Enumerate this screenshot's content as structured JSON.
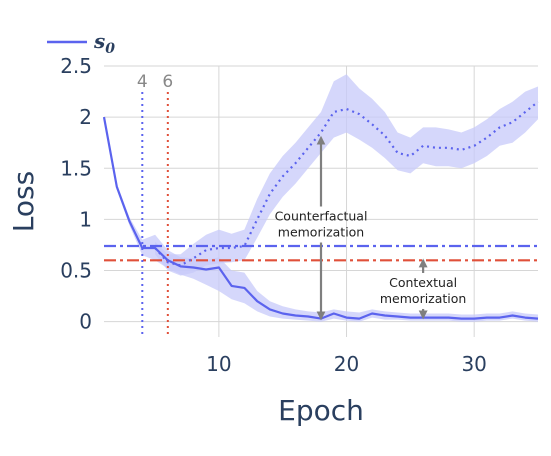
{
  "chart_data": {
    "type": "line",
    "xlabel": "Epoch",
    "ylabel": "Loss",
    "xlim": [
      1,
      35
    ],
    "ylim": [
      -0.15,
      2.5
    ],
    "xticks": [
      10,
      20,
      30
    ],
    "yticks": [
      0,
      0.5,
      1,
      1.5,
      2,
      2.5
    ],
    "ytick_labels": [
      "0",
      "0.5",
      "1",
      "1.5",
      "2",
      "2.5"
    ],
    "grid": true,
    "legend": {
      "label": "s0",
      "label_main": "s",
      "label_sub": "0",
      "position": "top-left"
    },
    "colors": {
      "series": "#5b63ee",
      "band": "#c7c9fa",
      "red": "#e0503a",
      "arrow": "#7f7f7f",
      "grid": "#d6d6d6"
    },
    "series": [
      {
        "name": "s0",
        "style": "solid",
        "x": [
          1,
          2,
          3,
          4,
          5,
          6,
          7,
          8,
          9,
          10,
          11,
          12,
          13,
          14,
          15,
          16,
          17,
          18,
          19,
          20,
          21,
          22,
          23,
          24,
          25,
          26,
          27,
          28,
          29,
          30,
          31,
          32,
          33,
          34,
          35
        ],
        "y": [
          2.0,
          1.32,
          0.98,
          0.72,
          0.72,
          0.6,
          0.54,
          0.53,
          0.51,
          0.53,
          0.35,
          0.33,
          0.2,
          0.12,
          0.08,
          0.06,
          0.05,
          0.03,
          0.08,
          0.04,
          0.03,
          0.08,
          0.06,
          0.05,
          0.04,
          0.04,
          0.04,
          0.04,
          0.03,
          0.03,
          0.04,
          0.04,
          0.06,
          0.04,
          0.03
        ],
        "band_upper": [
          2.0,
          1.35,
          1.02,
          0.8,
          0.85,
          0.7,
          0.63,
          0.62,
          0.6,
          0.63,
          0.5,
          0.48,
          0.3,
          0.2,
          0.15,
          0.12,
          0.1,
          0.09,
          0.12,
          0.1,
          0.09,
          0.12,
          0.1,
          0.09,
          0.08,
          0.08,
          0.08,
          0.08,
          0.07,
          0.07,
          0.08,
          0.08,
          0.1,
          0.08,
          0.07
        ],
        "band_lower": [
          2.0,
          1.29,
          0.94,
          0.65,
          0.6,
          0.52,
          0.46,
          0.42,
          0.36,
          0.3,
          0.22,
          0.18,
          0.1,
          0.05,
          0.03,
          0.02,
          0.01,
          0.0,
          0.03,
          0.01,
          0.0,
          0.04,
          0.02,
          0.02,
          0.01,
          0.01,
          0.01,
          0.01,
          0.0,
          0.0,
          0.01,
          0.01,
          0.03,
          0.01,
          0.0
        ]
      },
      {
        "name": "",
        "style": "dotted",
        "x": [
          5,
          6,
          7,
          8,
          9,
          10,
          11,
          12,
          13,
          14,
          15,
          16,
          17,
          18,
          19,
          20,
          21,
          22,
          23,
          24,
          25,
          26,
          27,
          28,
          29,
          30,
          31,
          32,
          33,
          34,
          35
        ],
        "y": [
          0.72,
          0.58,
          0.55,
          0.62,
          0.7,
          0.72,
          0.72,
          0.74,
          1.0,
          1.25,
          1.42,
          1.55,
          1.7,
          1.85,
          2.05,
          2.08,
          2.03,
          1.93,
          1.82,
          1.65,
          1.62,
          1.72,
          1.7,
          1.7,
          1.68,
          1.72,
          1.8,
          1.9,
          1.95,
          2.05,
          2.15
        ],
        "band_upper": [
          0.78,
          0.66,
          0.66,
          0.76,
          0.85,
          0.9,
          0.86,
          0.9,
          1.2,
          1.45,
          1.62,
          1.75,
          1.9,
          2.05,
          2.35,
          2.42,
          2.28,
          2.18,
          2.05,
          1.85,
          1.8,
          1.9,
          1.9,
          1.88,
          1.85,
          1.9,
          1.98,
          2.08,
          2.15,
          2.25,
          2.3
        ],
        "band_lower": [
          0.66,
          0.5,
          0.45,
          0.48,
          0.55,
          0.57,
          0.58,
          0.6,
          0.82,
          1.05,
          1.22,
          1.35,
          1.5,
          1.65,
          1.8,
          1.85,
          1.78,
          1.7,
          1.6,
          1.48,
          1.45,
          1.55,
          1.52,
          1.52,
          1.5,
          1.55,
          1.62,
          1.72,
          1.75,
          1.85,
          1.98
        ]
      }
    ],
    "hlines": [
      {
        "y": 0.74,
        "color": "#5b63ee",
        "style": "dashdot"
      },
      {
        "y": 0.6,
        "color": "#e0503a",
        "style": "dashdot"
      }
    ],
    "vlines": [
      {
        "x": 4,
        "label": "4",
        "color": "#5b63ee",
        "style": "dotted"
      },
      {
        "x": 6,
        "label": "6",
        "color": "#e0503a",
        "style": "dotted"
      }
    ],
    "annotations": [
      {
        "x": 18,
        "y_from": 1.8,
        "y_to": 0.03,
        "text": [
          "Counterfactual",
          "memorization"
        ],
        "text_y": 0.95
      },
      {
        "x": 26,
        "y_from": 0.6,
        "y_to": 0.04,
        "text": [
          "Contextual",
          "memorization"
        ],
        "text_y": 0.3
      }
    ]
  }
}
